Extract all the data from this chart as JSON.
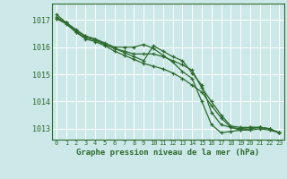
{
  "title": "Graphe pression niveau de la mer (hPa)",
  "background_color": "#cce8e8",
  "grid_color": "#ffffff",
  "line_color": "#2d6a2d",
  "xlim": [
    -0.5,
    23.5
  ],
  "ylim": [
    1012.6,
    1017.6
  ],
  "yticks": [
    1013,
    1014,
    1015,
    1016,
    1017
  ],
  "xticks": [
    0,
    1,
    2,
    3,
    4,
    5,
    6,
    7,
    8,
    9,
    10,
    11,
    12,
    13,
    14,
    15,
    16,
    17,
    18,
    19,
    20,
    21,
    22,
    23
  ],
  "series": [
    [
      1017.2,
      1016.9,
      1016.65,
      1016.4,
      1016.3,
      1016.15,
      1016.0,
      1016.0,
      1016.0,
      1016.1,
      1015.95,
      1015.7,
      1015.45,
      1015.1,
      1014.85,
      1014.0,
      1013.15,
      1012.85,
      1012.9,
      1012.95,
      1013.0,
      1013.05,
      1013.0,
      1012.85
    ],
    [
      1017.05,
      1016.9,
      1016.55,
      1016.35,
      1016.25,
      1016.1,
      1015.95,
      1015.85,
      1015.75,
      1015.75,
      1015.75,
      1015.65,
      1015.5,
      1015.35,
      1015.15,
      1014.5,
      1014.0,
      1013.5,
      1013.1,
      1013.05,
      1013.05,
      1013.05,
      1013.0,
      1012.85
    ],
    [
      1017.1,
      1016.9,
      1016.6,
      1016.4,
      1016.3,
      1016.1,
      1015.95,
      1015.8,
      1015.65,
      1015.5,
      1016.05,
      1015.85,
      1015.65,
      1015.5,
      1015.05,
      1014.6,
      1013.6,
      1013.15,
      1013.05,
      1013.0,
      1013.05,
      1013.05,
      1013.0,
      1012.85
    ],
    [
      1017.05,
      1016.85,
      1016.55,
      1016.3,
      1016.2,
      1016.05,
      1015.85,
      1015.7,
      1015.55,
      1015.4,
      1015.3,
      1015.2,
      1015.05,
      1014.85,
      1014.6,
      1014.35,
      1013.85,
      1013.4,
      1013.05,
      1012.95,
      1012.95,
      1013.0,
      1012.95,
      1012.85
    ]
  ],
  "title_fontsize": 6.5,
  "xlabel_fontsize": 5.0,
  "ylabel_fontsize": 6.0
}
